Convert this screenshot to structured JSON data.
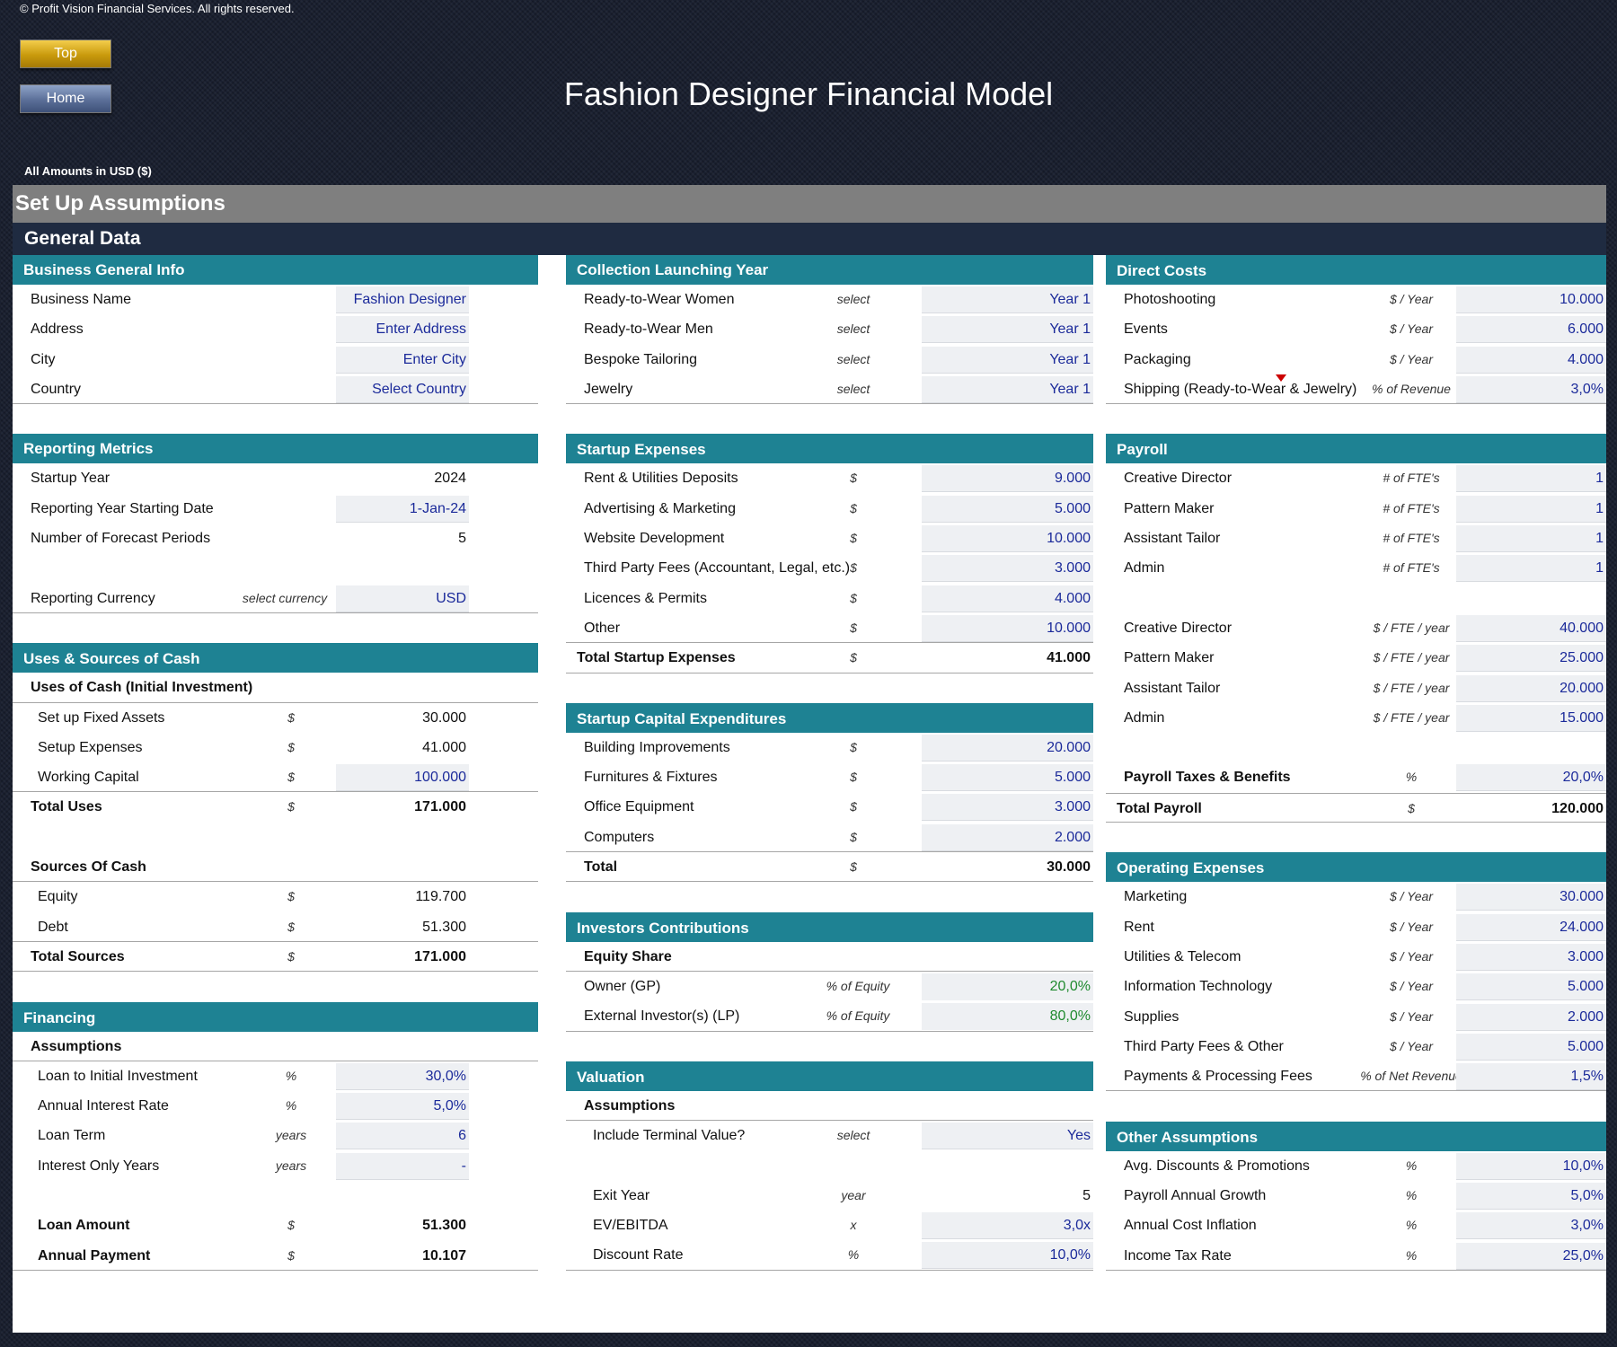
{
  "copyright": "© Profit Vision Financial Services. All rights reserved.",
  "nav": {
    "top": "Top",
    "home": "Home"
  },
  "title": "Fashion Designer Financial Model",
  "amounts_label": "All Amounts in  USD ($)",
  "setup_title": "Set Up Assumptions",
  "general_title": "General Data",
  "business_info": {
    "title": "Business General Info",
    "rows": [
      {
        "label": "Business Name",
        "value": "Fashion Designer"
      },
      {
        "label": "Address",
        "value": "Enter Address"
      },
      {
        "label": "City",
        "value": "Enter City"
      },
      {
        "label": "Country",
        "value": "Select Country"
      }
    ]
  },
  "reporting": {
    "title": "Reporting Metrics",
    "rows": [
      {
        "label": "Startup Year",
        "value": "2024"
      },
      {
        "label": "Reporting Year Starting Date",
        "value": "1-Jan-24"
      },
      {
        "label": "Number of Forecast Periods",
        "value": "5"
      },
      {
        "label": "Reporting Currency",
        "unit": "select currency",
        "value": "USD"
      }
    ]
  },
  "uses_sources": {
    "title": "Uses & Sources of Cash",
    "uses_title": "Uses of Cash (Initial Investment)",
    "uses": [
      {
        "label": "Set up Fixed Assets",
        "unit": "$",
        "value": "30.000"
      },
      {
        "label": "Setup Expenses",
        "unit": "$",
        "value": "41.000"
      },
      {
        "label": "Working Capital",
        "unit": "$",
        "value": "100.000"
      }
    ],
    "total_uses": {
      "label": "Total Uses",
      "unit": "$",
      "value": "171.000"
    },
    "sources_title": "Sources Of Cash",
    "sources": [
      {
        "label": "Equity",
        "unit": "$",
        "value": "119.700"
      },
      {
        "label": "Debt",
        "unit": "$",
        "value": "51.300"
      }
    ],
    "total_sources": {
      "label": "Total Sources",
      "unit": "$",
      "value": "171.000"
    }
  },
  "financing": {
    "title": "Financing",
    "assumptions": "Assumptions",
    "rows": [
      {
        "label": "Loan to Initial Investment",
        "unit": "%",
        "value": "30,0%"
      },
      {
        "label": "Annual Interest Rate",
        "unit": "%",
        "value": "5,0%"
      },
      {
        "label": "Loan Term",
        "unit": "years",
        "value": "6"
      },
      {
        "label": "Interest Only Years",
        "unit": "years",
        "value": "-"
      }
    ],
    "loan_amount": {
      "label": "Loan Amount",
      "unit": "$",
      "value": "51.300"
    },
    "annual_payment": {
      "label": "Annual Payment",
      "unit": "$",
      "value": "10.107"
    }
  },
  "collection": {
    "title": "Collection Launching Year",
    "rows": [
      {
        "label": "Ready-to-Wear Women",
        "unit": "select",
        "value": "Year 1"
      },
      {
        "label": "Ready-to-Wear Men",
        "unit": "select",
        "value": "Year 1"
      },
      {
        "label": "Bespoke Tailoring",
        "unit": "select",
        "value": "Year 1"
      },
      {
        "label": "Jewelry",
        "unit": "select",
        "value": "Year 1"
      }
    ]
  },
  "startup_expenses": {
    "title": "Startup Expenses",
    "rows": [
      {
        "label": "Rent & Utilities Deposits",
        "unit": "$",
        "value": "9.000"
      },
      {
        "label": "Advertising & Marketing",
        "unit": "$",
        "value": "5.000"
      },
      {
        "label": "Website Development",
        "unit": "$",
        "value": "10.000"
      },
      {
        "label": "Third Party Fees (Accountant, Legal, etc.)",
        "unit": "$",
        "value": "3.000"
      },
      {
        "label": "Licences & Permits",
        "unit": "$",
        "value": "4.000"
      },
      {
        "label": "Other",
        "unit": "$",
        "value": "10.000"
      }
    ],
    "total": {
      "label": "Total Startup Expenses",
      "unit": "$",
      "value": "41.000"
    }
  },
  "capex": {
    "title": "Startup Capital Expenditures",
    "rows": [
      {
        "label": "Building Improvements",
        "unit": "$",
        "value": "20.000"
      },
      {
        "label": "Furnitures & Fixtures",
        "unit": "$",
        "value": "5.000"
      },
      {
        "label": "Office Equipment",
        "unit": "$",
        "value": "3.000"
      },
      {
        "label": "Computers",
        "unit": "$",
        "value": "2.000"
      }
    ],
    "total": {
      "label": "Total",
      "unit": "$",
      "value": "30.000"
    }
  },
  "investors": {
    "title": "Investors Contributions",
    "subtitle": "Equity Share",
    "rows": [
      {
        "label": "Owner (GP)",
        "unit": "% of Equity",
        "value": "20,0%"
      },
      {
        "label": "External Investor(s) (LP)",
        "unit": "% of Equity",
        "value": "80,0%"
      }
    ]
  },
  "valuation": {
    "title": "Valuation",
    "assumptions": "Assumptions",
    "terminal": {
      "label": "Include Terminal Value?",
      "unit": "select",
      "value": "Yes"
    },
    "rows": [
      {
        "label": "Exit Year",
        "unit": "year",
        "value": "5"
      },
      {
        "label": "EV/EBITDA",
        "unit": "x",
        "value": "3,0x"
      },
      {
        "label": "Discount Rate",
        "unit": "%",
        "value": "10,0%"
      }
    ]
  },
  "direct_costs": {
    "title": "Direct Costs",
    "rows": [
      {
        "label": "Photoshooting",
        "unit": "$ / Year",
        "value": "10.000"
      },
      {
        "label": "Events",
        "unit": "$ / Year",
        "value": "6.000"
      },
      {
        "label": "Packaging",
        "unit": "$ / Year",
        "value": "4.000"
      },
      {
        "label": "Shipping (Ready-to-Wear & Jewelry)",
        "unit": "% of Revenue",
        "value": "3,0%"
      }
    ]
  },
  "payroll": {
    "title": "Payroll",
    "fte_rows": [
      {
        "label": "Creative Director",
        "unit": "# of FTE's",
        "value": "1"
      },
      {
        "label": "Pattern Maker",
        "unit": "# of FTE's",
        "value": "1"
      },
      {
        "label": "Assistant Tailor",
        "unit": "# of FTE's",
        "value": "1"
      },
      {
        "label": "Admin",
        "unit": "# of FTE's",
        "value": "1"
      }
    ],
    "salary_rows": [
      {
        "label": "Creative Director",
        "unit": "$ / FTE /  year",
        "value": "40.000"
      },
      {
        "label": "Pattern Maker",
        "unit": "$ / FTE /  year",
        "value": "25.000"
      },
      {
        "label": "Assistant Tailor",
        "unit": "$ / FTE /  year",
        "value": "20.000"
      },
      {
        "label": "Admin",
        "unit": "$ / FTE /  year",
        "value": "15.000"
      }
    ],
    "taxes": {
      "label": "Payroll Taxes & Benefits",
      "unit": "%",
      "value": "20,0%"
    },
    "total": {
      "label": "Total Payroll",
      "unit": "$",
      "value": "120.000"
    }
  },
  "opex": {
    "title": "Operating Expenses",
    "rows": [
      {
        "label": "Marketing",
        "unit": "$ / Year",
        "value": "30.000"
      },
      {
        "label": "Rent",
        "unit": "$ / Year",
        "value": "24.000"
      },
      {
        "label": "Utilities & Telecom",
        "unit": "$ / Year",
        "value": "3.000"
      },
      {
        "label": "Information Technology",
        "unit": "$ / Year",
        "value": "5.000"
      },
      {
        "label": "Supplies",
        "unit": "$ / Year",
        "value": "2.000"
      },
      {
        "label": "Third Party Fees & Other",
        "unit": "$ / Year",
        "value": "5.000"
      },
      {
        "label": "Payments & Processing Fees",
        "unit": "% of Net Revenue",
        "value": "1,5%"
      }
    ]
  },
  "other": {
    "title": "Other Assumptions",
    "rows": [
      {
        "label": "Avg. Discounts & Promotions",
        "unit": "%",
        "value": "10,0%"
      },
      {
        "label": "Payroll Annual Growth",
        "unit": "%",
        "value": "5,0%"
      },
      {
        "label": "Annual Cost Inflation",
        "unit": "%",
        "value": "3,0%"
      },
      {
        "label": "Income Tax Rate",
        "unit": "%",
        "value": "25,0%"
      }
    ]
  }
}
